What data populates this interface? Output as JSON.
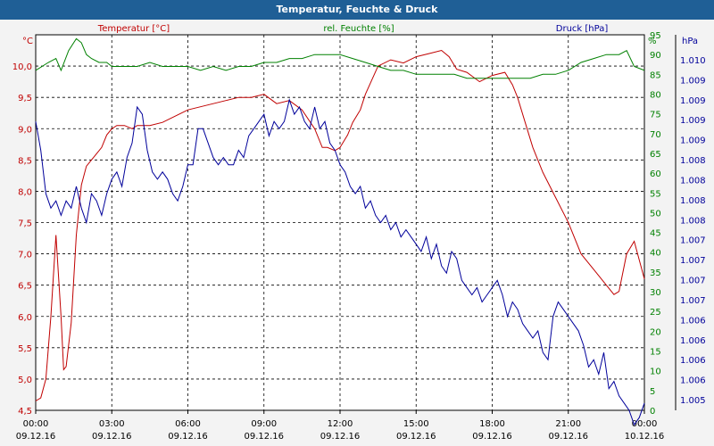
{
  "window": {
    "title": "Temperatur, Feuchte & Druck"
  },
  "colors": {
    "temperature": "#c00000",
    "humidity": "#008000",
    "pressure": "#00009a",
    "title_bg": "#1f5f96"
  },
  "chart_data": {
    "type": "line",
    "title": "Temperatur, Feuchte & Druck",
    "legend": {
      "temperature": "Temperatur [°C]",
      "humidity": "rel. Feuchte [%]",
      "pressure": "Druck [hPa]"
    },
    "axes": {
      "left": {
        "unit": "°C",
        "min": 4.5,
        "max": 10.5,
        "ticks": [
          "4,5",
          "5,0",
          "5,5",
          "6,0",
          "6,5",
          "7,0",
          "7,5",
          "8,0",
          "8,5",
          "9,0",
          "9,5",
          "10,0"
        ],
        "tick_values": [
          4.5,
          5,
          5.5,
          6,
          6.5,
          7,
          7.5,
          8,
          8.5,
          9,
          9.5,
          10
        ]
      },
      "right1": {
        "unit": "%",
        "min": 0,
        "max": 95,
        "ticks": [
          "0",
          "5",
          "10",
          "15",
          "20",
          "25",
          "30",
          "35",
          "40",
          "45",
          "50",
          "55",
          "60",
          "65",
          "70",
          "75",
          "80",
          "85",
          "90",
          "95"
        ]
      },
      "right2": {
        "unit": "hPa",
        "min": 1005,
        "max": 1010.2,
        "ticks": [
          "1.005",
          "1.006",
          "1.006",
          "1.006",
          "1.006",
          "1.007",
          "1.007",
          "1.007",
          "1.007",
          "1.008",
          "1.008",
          "1.008",
          "1.008",
          "1.009",
          "1.009",
          "1.009",
          "1.009",
          "1.010"
        ]
      }
    },
    "x_ticks": [
      {
        "time": "00:00",
        "date": "09.12.16"
      },
      {
        "time": "03:00",
        "date": "09.12.16"
      },
      {
        "time": "06:00",
        "date": "09.12.16"
      },
      {
        "time": "09:00",
        "date": "09.12.16"
      },
      {
        "time": "12:00",
        "date": "09.12.16"
      },
      {
        "time": "15:00",
        "date": "09.12.16"
      },
      {
        "time": "18:00",
        "date": "09.12.16"
      },
      {
        "time": "21:00",
        "date": "09.12.16"
      },
      {
        "time": "00:00",
        "date": "10.12.16"
      }
    ],
    "x_range_hours": [
      0,
      24
    ],
    "series": [
      {
        "name": "Temperatur [°C]",
        "axis": "left",
        "color": "#c00000",
        "x": [
          0,
          0.2,
          0.4,
          0.6,
          0.8,
          1.0,
          1.1,
          1.2,
          1.4,
          1.6,
          1.8,
          2.0,
          2.2,
          2.4,
          2.6,
          2.8,
          3.0,
          3.2,
          3.5,
          3.8,
          4.0,
          4.5,
          5.0,
          5.5,
          6.0,
          6.5,
          7.0,
          7.5,
          8.0,
          8.5,
          9.0,
          9.5,
          10.0,
          10.5,
          11.0,
          11.3,
          11.5,
          11.8,
          12.0,
          12.3,
          12.5,
          12.8,
          13.0,
          13.5,
          14.0,
          14.5,
          15.0,
          15.5,
          16.0,
          16.3,
          16.6,
          17.0,
          17.5,
          18.0,
          18.5,
          18.8,
          19.0,
          19.3,
          19.6,
          20.0,
          20.5,
          21.0,
          21.5,
          22.0,
          22.5,
          22.8,
          23.0,
          23.3,
          23.6,
          24.0
        ],
        "values": [
          4.65,
          4.7,
          5.0,
          6.0,
          7.3,
          6.0,
          5.15,
          5.2,
          5.9,
          7.3,
          8.1,
          8.4,
          8.5,
          8.6,
          8.7,
          8.9,
          9.0,
          9.05,
          9.05,
          9.0,
          9.05,
          9.05,
          9.1,
          9.2,
          9.3,
          9.35,
          9.4,
          9.45,
          9.5,
          9.5,
          9.55,
          9.4,
          9.45,
          9.3,
          9.0,
          8.7,
          8.7,
          8.65,
          8.7,
          8.9,
          9.1,
          9.3,
          9.55,
          10.0,
          10.1,
          10.05,
          10.15,
          10.2,
          10.25,
          10.15,
          9.95,
          9.9,
          9.75,
          9.85,
          9.9,
          9.7,
          9.5,
          9.1,
          8.7,
          8.3,
          7.9,
          7.5,
          7.0,
          6.75,
          6.5,
          6.35,
          6.4,
          7.0,
          7.2,
          6.6
        ]
      },
      {
        "name": "rel. Feuchte [%]",
        "axis": "right1",
        "color": "#008000",
        "x": [
          0,
          0.5,
          0.8,
          1.0,
          1.3,
          1.6,
          1.8,
          2.0,
          2.2,
          2.5,
          2.8,
          3.0,
          3.5,
          4.0,
          4.5,
          5.0,
          5.5,
          6.0,
          6.5,
          7.0,
          7.5,
          8.0,
          8.5,
          9.0,
          9.5,
          10.0,
          10.5,
          11.0,
          11.5,
          12.0,
          12.5,
          13.0,
          13.5,
          14.0,
          14.5,
          15.0,
          15.5,
          16.0,
          16.5,
          17.0,
          17.5,
          18.0,
          18.5,
          19.0,
          19.5,
          20.0,
          20.5,
          21.0,
          21.5,
          22.0,
          22.5,
          22.8,
          23.0,
          23.3,
          23.6,
          24.0
        ],
        "values": [
          86,
          88,
          89,
          86,
          91,
          94,
          93,
          90,
          89,
          88,
          88,
          87,
          87,
          87,
          88,
          87,
          87,
          87,
          86,
          87,
          86,
          87,
          87,
          88,
          88,
          89,
          89,
          90,
          90,
          90,
          89,
          88,
          87,
          86,
          86,
          85,
          85,
          85,
          85,
          84,
          84,
          84,
          84,
          84,
          84,
          85,
          85,
          86,
          88,
          89,
          90,
          90,
          90,
          91,
          87,
          86
        ]
      },
      {
        "name": "Druck [hPa]",
        "axis": "right2",
        "color": "#00009a",
        "x": [
          0,
          0.2,
          0.4,
          0.6,
          0.8,
          1.0,
          1.2,
          1.4,
          1.6,
          1.8,
          2.0,
          2.2,
          2.4,
          2.6,
          2.8,
          3.0,
          3.2,
          3.4,
          3.6,
          3.8,
          4.0,
          4.2,
          4.4,
          4.6,
          4.8,
          5.0,
          5.2,
          5.4,
          5.6,
          5.8,
          6.0,
          6.2,
          6.4,
          6.6,
          6.8,
          7.0,
          7.2,
          7.4,
          7.6,
          7.8,
          8.0,
          8.2,
          8.4,
          8.6,
          8.8,
          9.0,
          9.2,
          9.4,
          9.6,
          9.8,
          10.0,
          10.2,
          10.4,
          10.6,
          10.8,
          11.0,
          11.2,
          11.4,
          11.6,
          11.8,
          12.0,
          12.2,
          12.4,
          12.6,
          12.8,
          13.0,
          13.2,
          13.4,
          13.6,
          13.8,
          14.0,
          14.2,
          14.4,
          14.6,
          14.8,
          15.0,
          15.2,
          15.4,
          15.6,
          15.8,
          16.0,
          16.2,
          16.4,
          16.6,
          16.8,
          17.0,
          17.2,
          17.4,
          17.6,
          17.8,
          18.0,
          18.2,
          18.4,
          18.6,
          18.8,
          19.0,
          19.2,
          19.4,
          19.6,
          19.8,
          20.0,
          20.2,
          20.4,
          20.6,
          20.8,
          21.0,
          21.2,
          21.4,
          21.6,
          21.8,
          22.0,
          22.2,
          22.4,
          22.6,
          22.8,
          23.0,
          23.2,
          23.4,
          23.6,
          23.8,
          24.0
        ],
        "values": [
          1009.0,
          1008.6,
          1008.0,
          1007.8,
          1007.9,
          1007.7,
          1007.9,
          1007.8,
          1008.1,
          1007.8,
          1007.6,
          1008.0,
          1007.9,
          1007.7,
          1008.0,
          1008.2,
          1008.3,
          1008.1,
          1008.5,
          1008.7,
          1009.2,
          1009.1,
          1008.6,
          1008.3,
          1008.2,
          1008.3,
          1008.2,
          1008.0,
          1007.9,
          1008.1,
          1008.4,
          1008.4,
          1008.9,
          1008.9,
          1008.7,
          1008.5,
          1008.4,
          1008.5,
          1008.4,
          1008.4,
          1008.6,
          1008.5,
          1008.8,
          1008.9,
          1009.0,
          1009.1,
          1008.8,
          1009.0,
          1008.9,
          1009.0,
          1009.3,
          1009.1,
          1009.2,
          1009.0,
          1008.9,
          1009.2,
          1008.9,
          1009.0,
          1008.7,
          1008.6,
          1008.4,
          1008.3,
          1008.1,
          1008.0,
          1008.1,
          1007.8,
          1007.9,
          1007.7,
          1007.6,
          1007.7,
          1007.5,
          1007.6,
          1007.4,
          1007.5,
          1007.4,
          1007.3,
          1007.2,
          1007.4,
          1007.1,
          1007.3,
          1007.0,
          1006.9,
          1007.2,
          1007.1,
          1006.8,
          1006.7,
          1006.6,
          1006.7,
          1006.5,
          1006.6,
          1006.7,
          1006.8,
          1006.6,
          1006.3,
          1006.5,
          1006.4,
          1006.2,
          1006.1,
          1006.0,
          1006.1,
          1005.8,
          1005.7,
          1006.3,
          1006.5,
          1006.4,
          1006.3,
          1006.2,
          1006.1,
          1005.9,
          1005.6,
          1005.7,
          1005.5,
          1005.8,
          1005.3,
          1005.4,
          1005.2,
          1005.1,
          1005.0,
          1004.8,
          1004.9,
          1005.1
        ]
      }
    ]
  }
}
